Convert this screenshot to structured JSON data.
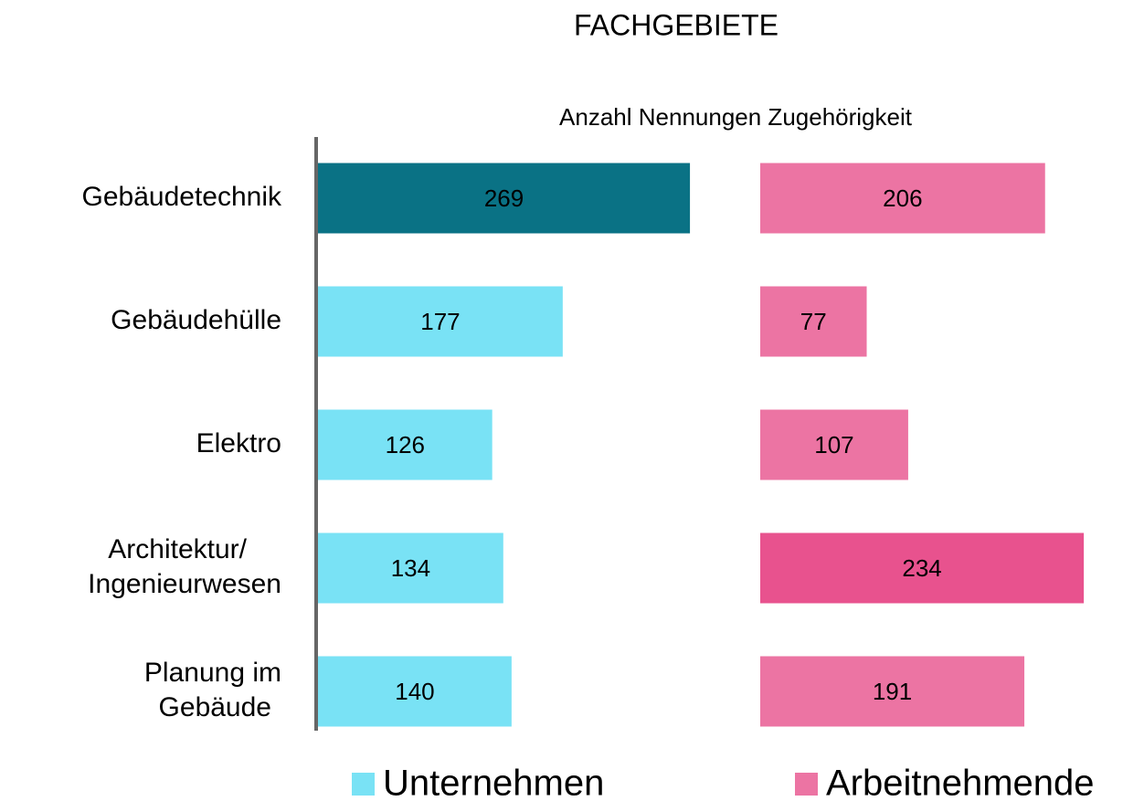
{
  "chart_data": {
    "type": "bar",
    "orientation": "horizontal",
    "layout": "side-by-side panels",
    "title": "FACHGEBIETE",
    "subtitle": "Anzahl Nennungen Zugehörigkeit",
    "categories": [
      "Gebäudetechnik",
      "Gebäudehülle",
      "Elektro",
      "Architektur/\nIngenieurwesen",
      "Planung im\nGebäude"
    ],
    "series": [
      {
        "name": "Unternehmen",
        "color": "#79e2f5",
        "colors": [
          "#0a7285",
          "#79e2f5",
          "#79e2f5",
          "#79e2f5",
          "#79e2f5"
        ],
        "values": [
          269,
          177,
          126,
          134,
          140
        ]
      },
      {
        "name": "Arbeitnehmende",
        "color": "#ec74a3",
        "colors": [
          "#ec74a3",
          "#ec74a3",
          "#ec74a3",
          "#e8528e",
          "#ec74a3"
        ],
        "values": [
          206,
          77,
          107,
          234,
          191
        ]
      }
    ],
    "xlim": [
      0,
      300
    ],
    "legend": "bottom"
  }
}
